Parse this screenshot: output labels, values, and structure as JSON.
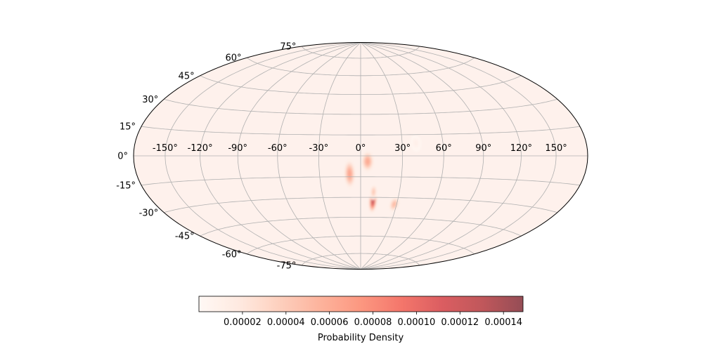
{
  "chart_data": {
    "type": "heatmap",
    "projection": "hammer",
    "title": "",
    "grid": true,
    "colormap": "Reds",
    "colormap_alpha": 0.7,
    "x_unit": "longitude (deg)",
    "y_unit": "latitude (deg)",
    "x_ticks": [
      -150,
      -120,
      -90,
      -60,
      -30,
      0,
      30,
      60,
      90,
      120,
      150
    ],
    "x_tick_labels": [
      "-150°",
      "-120°",
      "-90°",
      "-60°",
      "-30°",
      "0°",
      "30°",
      "60°",
      "90°",
      "120°",
      "150°"
    ],
    "y_ticks": [
      -75,
      -60,
      -45,
      -30,
      -15,
      0,
      15,
      30,
      45,
      60,
      75
    ],
    "y_tick_labels": [
      "-75°",
      "-60°",
      "-45°",
      "-30°",
      "-15°",
      "0°",
      "15°",
      "30°",
      "45°",
      "60°",
      "75°"
    ],
    "density_blobs": [
      {
        "lon": 10,
        "lat": -33,
        "sigma_lon": 1.6,
        "sigma_lat": 4.2,
        "peak": 0.000148
      },
      {
        "lon": 10,
        "lat": -26,
        "sigma_lon": 1.4,
        "sigma_lat": 3.0,
        "peak": 5e-05
      },
      {
        "lon": -8,
        "lat": -13,
        "sigma_lon": 2.2,
        "sigma_lat": 5.5,
        "peak": 7.5e-05
      },
      {
        "lon": 5,
        "lat": -4,
        "sigma_lon": 2.4,
        "sigma_lat": 4.0,
        "peak": 7.2e-05
      },
      {
        "lon": 28,
        "lat": -35,
        "sigma_lon": 2.2,
        "sigma_lat": 3.0,
        "peak": 6e-05
      },
      {
        "lon": 40,
        "lat": 9,
        "sigma_lon": 2.0,
        "sigma_lat": 3.0,
        "peak": 1.2e-05
      }
    ],
    "colorbar": {
      "label": "Probability Density",
      "vmin": 0,
      "vmax": 0.000149,
      "ticks": [
        2e-05,
        4e-05,
        6e-05,
        8e-05,
        0.0001,
        0.00012,
        0.00014
      ],
      "tick_labels": [
        "0.00002",
        "0.00004",
        "0.00006",
        "0.00008",
        "0.00010",
        "0.00012",
        "0.00014"
      ],
      "orientation": "horizontal",
      "placement": "bottom"
    }
  }
}
